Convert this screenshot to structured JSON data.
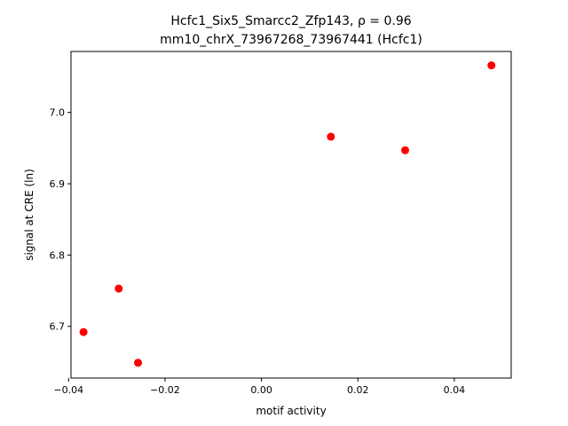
{
  "chart_data": {
    "type": "scatter",
    "title_line1": "Hcfc1_Six5_Smarcc2_Zfp143, ρ = 0.96",
    "title_line2": "mm10_chrX_73967268_73967441 (Hcfc1)",
    "xlabel": "motif activity",
    "ylabel": "signal at CRE (ln)",
    "xlim": [
      -0.0395,
      0.0518
    ],
    "ylim": [
      6.6275,
      7.0855
    ],
    "xticks": [
      {
        "value": -0.04,
        "label": "−0.04"
      },
      {
        "value": -0.02,
        "label": "−0.02"
      },
      {
        "value": 0.0,
        "label": "0.00"
      },
      {
        "value": 0.02,
        "label": "0.02"
      },
      {
        "value": 0.04,
        "label": "0.04"
      }
    ],
    "yticks": [
      {
        "value": 6.7,
        "label": "6.7"
      },
      {
        "value": 6.8,
        "label": "6.8"
      },
      {
        "value": 6.9,
        "label": "6.9"
      },
      {
        "value": 7.0,
        "label": "7.0"
      }
    ],
    "grid": false,
    "marker_color": "#ff0000",
    "points": [
      {
        "x": -0.0369,
        "y": 6.692
      },
      {
        "x": -0.0296,
        "y": 6.753
      },
      {
        "x": -0.0256,
        "y": 6.649
      },
      {
        "x": 0.0144,
        "y": 6.966
      },
      {
        "x": 0.0298,
        "y": 6.947
      },
      {
        "x": 0.0477,
        "y": 7.066
      }
    ]
  }
}
